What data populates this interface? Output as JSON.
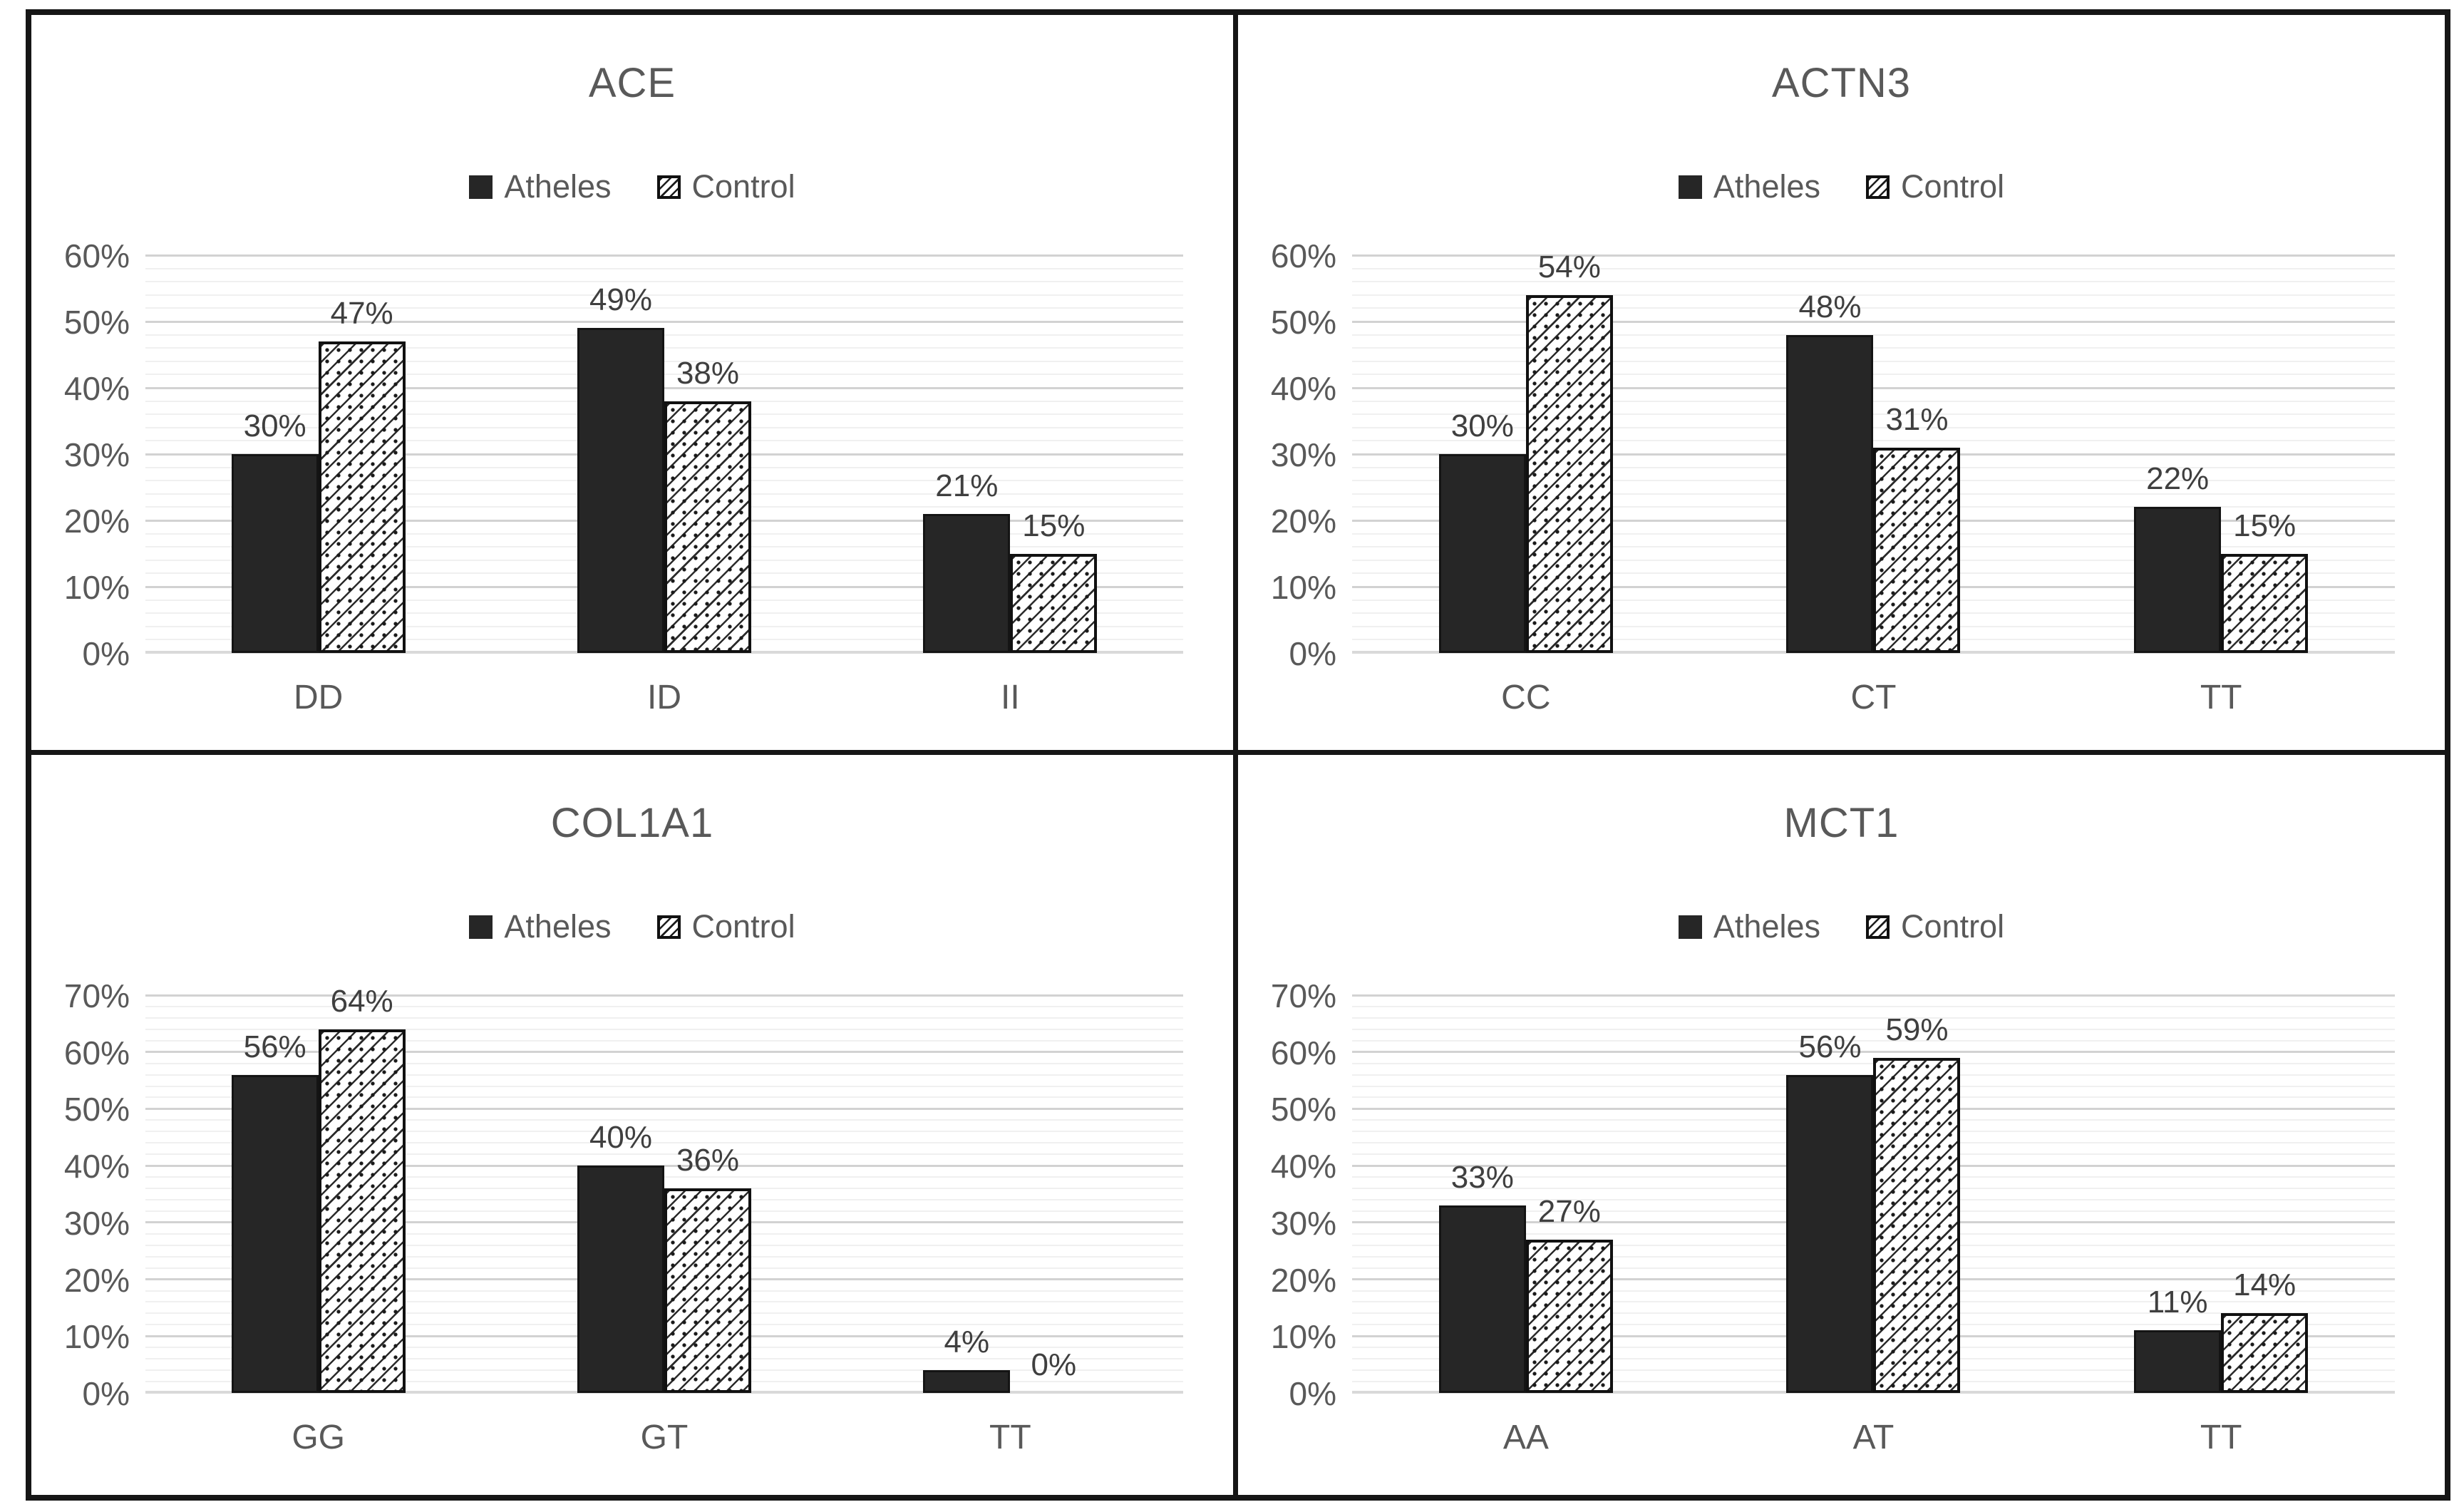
{
  "figure": {
    "background": "#ffffff",
    "border_color": "#161616",
    "athletes_fill": "#262626",
    "control_pattern": "diagonal-hatch-with-dots",
    "gridline_major_color": "#d2d2d2",
    "gridline_minor_color": "#f0f0f0",
    "axis_text_color": "#595959",
    "data_label_color": "#3f3f3f"
  },
  "legend": {
    "athletes_label": "Atheles",
    "control_label": "Control"
  },
  "chart_data": [
    {
      "type": "bar",
      "title": "ACE",
      "categories": [
        "DD",
        "ID",
        "II"
      ],
      "series": [
        {
          "name": "Atheles",
          "values": [
            30,
            49,
            21
          ]
        },
        {
          "name": "Control",
          "values": [
            47,
            38,
            15
          ]
        }
      ],
      "data_labels": [
        [
          "30%",
          "49%",
          "21%"
        ],
        [
          "47%",
          "38%",
          "15%"
        ]
      ],
      "ylim": [
        0,
        60
      ],
      "ytick_step": 10,
      "minor_step": 2,
      "y_ticks": [
        "0%",
        "10%",
        "20%",
        "30%",
        "40%",
        "50%",
        "60%"
      ],
      "value_suffix": "%",
      "grid": true,
      "legend_position": "top-center"
    },
    {
      "type": "bar",
      "title": "ACTN3",
      "categories": [
        "CC",
        "CT",
        "TT"
      ],
      "series": [
        {
          "name": "Atheles",
          "values": [
            30,
            48,
            22
          ]
        },
        {
          "name": "Control",
          "values": [
            54,
            31,
            15
          ]
        }
      ],
      "data_labels": [
        [
          "30%",
          "48%",
          "22%"
        ],
        [
          "54%",
          "31%",
          "15%"
        ]
      ],
      "ylim": [
        0,
        60
      ],
      "ytick_step": 10,
      "minor_step": 2,
      "y_ticks": [
        "0%",
        "10%",
        "20%",
        "30%",
        "40%",
        "50%",
        "60%"
      ],
      "value_suffix": "%",
      "grid": true,
      "legend_position": "top-center"
    },
    {
      "type": "bar",
      "title": "COL1A1",
      "categories": [
        "GG",
        "GT",
        "TT"
      ],
      "series": [
        {
          "name": "Atheles",
          "values": [
            56,
            40,
            4
          ]
        },
        {
          "name": "Control",
          "values": [
            64,
            36,
            0
          ]
        }
      ],
      "data_labels": [
        [
          "56%",
          "40%",
          "4%"
        ],
        [
          "64%",
          "36%",
          "0%"
        ]
      ],
      "ylim": [
        0,
        70
      ],
      "ytick_step": 10,
      "minor_step": 2,
      "y_ticks": [
        "0%",
        "10%",
        "20%",
        "30%",
        "40%",
        "50%",
        "60%",
        "70%"
      ],
      "value_suffix": "%",
      "grid": true,
      "legend_position": "top-center"
    },
    {
      "type": "bar",
      "title": "MCT1",
      "categories": [
        "AA",
        "AT",
        "TT"
      ],
      "series": [
        {
          "name": "Atheles",
          "values": [
            33,
            56,
            11
          ]
        },
        {
          "name": "Control",
          "values": [
            27,
            59,
            14
          ]
        }
      ],
      "data_labels": [
        [
          "33%",
          "56%",
          "11%"
        ],
        [
          "27%",
          "59%",
          "14%"
        ]
      ],
      "ylim": [
        0,
        70
      ],
      "ytick_step": 10,
      "minor_step": 2,
      "y_ticks": [
        "0%",
        "10%",
        "20%",
        "30%",
        "40%",
        "50%",
        "60%",
        "70%"
      ],
      "value_suffix": "%",
      "grid": true,
      "legend_position": "top-center"
    }
  ]
}
